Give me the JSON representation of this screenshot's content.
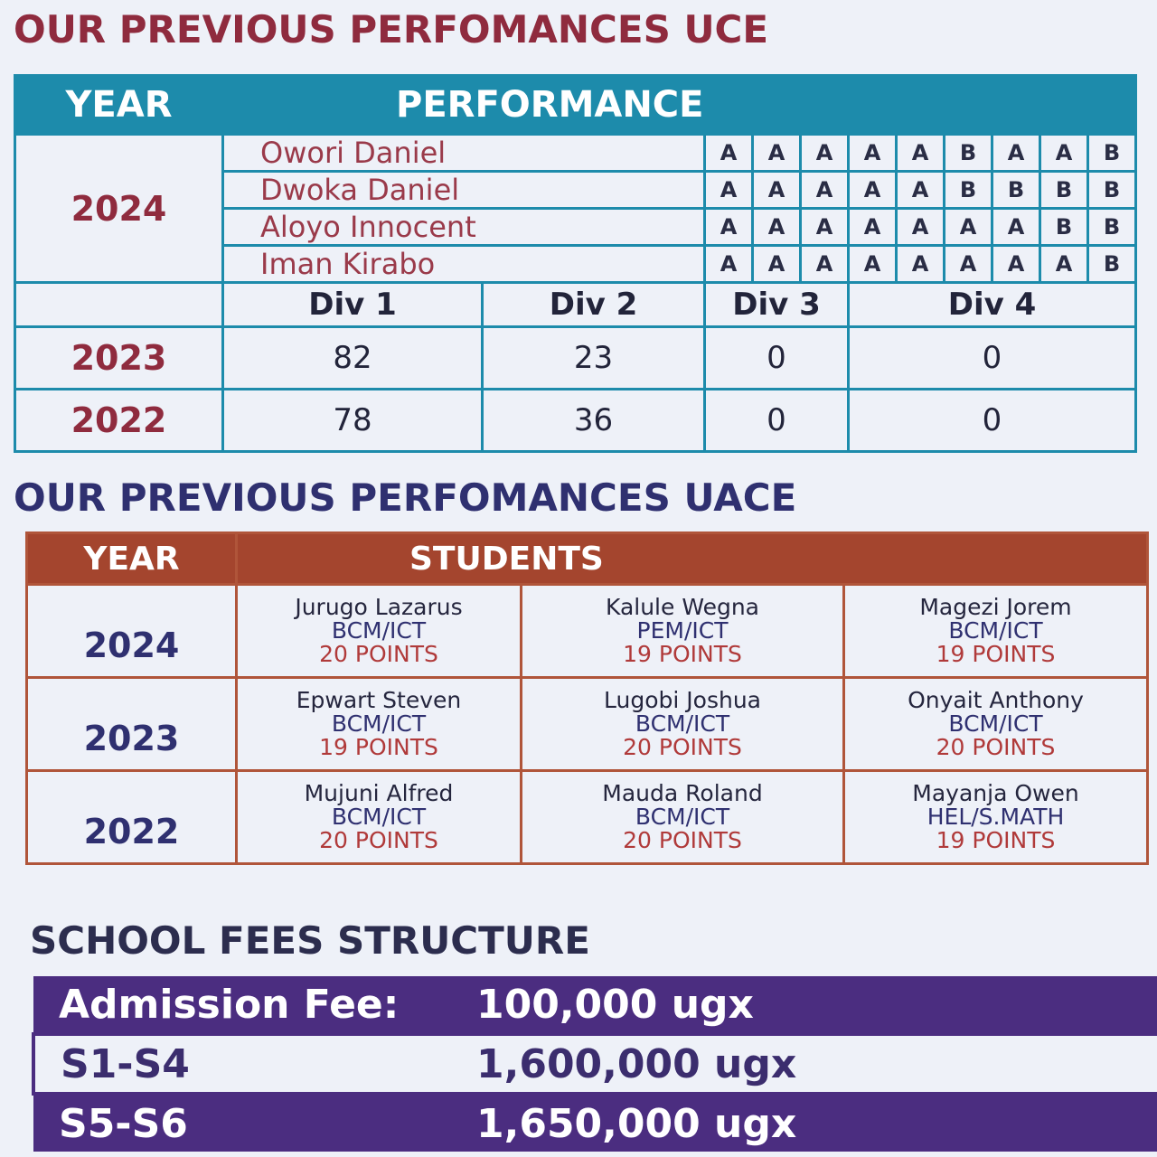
{
  "uce": {
    "title": "OUR PREVIOUS PERFOMANCES UCE",
    "headers": {
      "year": "YEAR",
      "performance": "PERFORMANCE"
    },
    "top_year": "2024",
    "students": [
      {
        "name": "Owori Daniel",
        "grades": [
          "A",
          "A",
          "A",
          "A",
          "A",
          "B",
          "A",
          "A",
          "B"
        ]
      },
      {
        "name": "Dwoka Daniel",
        "grades": [
          "A",
          "A",
          "A",
          "A",
          "A",
          "B",
          "B",
          "B",
          "B"
        ]
      },
      {
        "name": "Aloyo Innocent",
        "grades": [
          "A",
          "A",
          "A",
          "A",
          "A",
          "A",
          "A",
          "B",
          "B"
        ]
      },
      {
        "name": "Iman Kirabo",
        "grades": [
          "A",
          "A",
          "A",
          "A",
          "A",
          "A",
          "A",
          "A",
          "B"
        ]
      }
    ],
    "div_headers": [
      "Div 1",
      "Div 2",
      "Div 3",
      "Div 4"
    ],
    "div_rows": [
      {
        "year": "2023",
        "values": [
          "82",
          "23",
          "0",
          "0"
        ]
      },
      {
        "year": "2022",
        "values": [
          "78",
          "36",
          "0",
          "0"
        ]
      }
    ]
  },
  "uace": {
    "title": "OUR PREVIOUS PERFOMANCES UACE",
    "headers": {
      "year": "YEAR",
      "students": "STUDENTS"
    },
    "rows": [
      {
        "year": "2024",
        "students": [
          {
            "name": "Jurugo Lazarus",
            "combination": "BCM/ICT",
            "points": "20 POINTS"
          },
          {
            "name": "Kalule Wegna",
            "combination": "PEM/ICT",
            "points": "19 POINTS"
          },
          {
            "name": "Magezi Jorem",
            "combination": "BCM/ICT",
            "points": "19 POINTS"
          }
        ]
      },
      {
        "year": "2023",
        "students": [
          {
            "name": "Epwart Steven",
            "combination": "BCM/ICT",
            "points": "19 POINTS"
          },
          {
            "name": "Lugobi Joshua",
            "combination": "BCM/ICT",
            "points": "20 POINTS"
          },
          {
            "name": "Onyait Anthony",
            "combination": "BCM/ICT",
            "points": "20 POINTS"
          }
        ]
      },
      {
        "year": "2022",
        "students": [
          {
            "name": "Mujuni Alfred",
            "combination": "BCM/ICT",
            "points": "20 POINTS"
          },
          {
            "name": "Mauda Roland",
            "combination": "BCM/ICT",
            "points": "20 POINTS"
          },
          {
            "name": "Mayanja Owen",
            "combination": "HEL/S.MATH",
            "points": "19 POINTS"
          }
        ]
      }
    ]
  },
  "fees": {
    "title": "SCHOOL FEES STRUCTURE",
    "rows": [
      {
        "label": "Admission Fee:",
        "amount": "100,000 ugx"
      },
      {
        "label": "S1-S4",
        "amount": "1,600,000 ugx"
      },
      {
        "label": "S5-S6",
        "amount": "1,650,000 ugx"
      }
    ]
  },
  "colors": {
    "uce_teal": "#1d8bab",
    "uace_rust": "#a4452e",
    "fees_purple": "#4b2d80",
    "maroon_text": "#8f2b3e",
    "navy_text": "#2f3070"
  }
}
